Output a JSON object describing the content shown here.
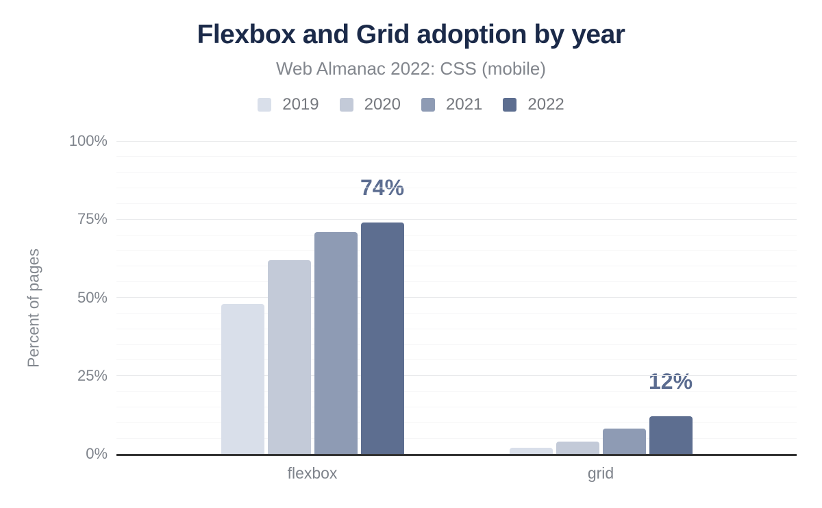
{
  "header": {
    "title": "Flexbox and Grid adoption by year",
    "subtitle": "Web Almanac 2022: CSS (mobile)"
  },
  "colors": {
    "title_text": "#1b2a49",
    "muted_text": "#7e838b",
    "annotation_text": "#5b6c90",
    "axis_line": "#333333",
    "grid_major": "#e9eaec",
    "grid_minor": "#f6f6f7",
    "background": "#ffffff"
  },
  "chart_data": {
    "type": "bar",
    "title": "Flexbox and Grid adoption by year",
    "subtitle": "Web Almanac 2022: CSS (mobile)",
    "categories": [
      "flexbox",
      "grid"
    ],
    "series": [
      {
        "name": "2019",
        "color": "#d9dfea",
        "values": [
          48,
          2
        ]
      },
      {
        "name": "2020",
        "color": "#c3cad8",
        "values": [
          62,
          4
        ]
      },
      {
        "name": "2021",
        "color": "#8e9bb4",
        "values": [
          71,
          8
        ]
      },
      {
        "name": "2022",
        "color": "#5d6e90",
        "values": [
          74,
          12
        ]
      }
    ],
    "annotations": [
      {
        "category": "flexbox",
        "series": "2022",
        "text": "74%"
      },
      {
        "category": "grid",
        "series": "2022",
        "text": "12%"
      }
    ],
    "xlabel": "",
    "ylabel": "Percent of pages",
    "ylim": [
      0,
      100
    ],
    "yticks": [
      0,
      25,
      50,
      75,
      100
    ],
    "ytick_labels": [
      "0%",
      "25%",
      "50%",
      "75%",
      "100%"
    ],
    "grid": "horizontal minor every 5%, major every 25%",
    "legend_position": "top-center"
  }
}
